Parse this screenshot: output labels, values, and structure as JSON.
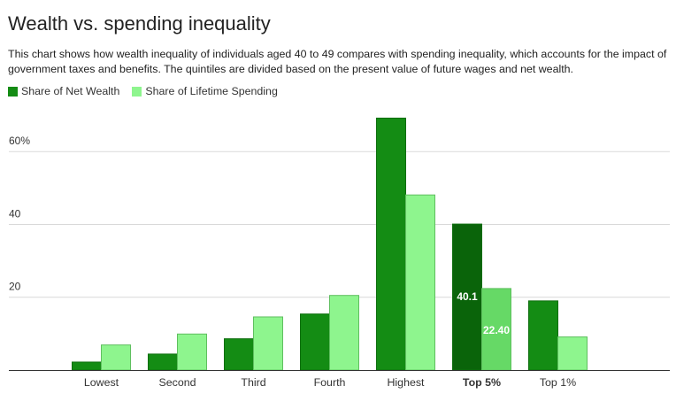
{
  "chart_data": {
    "type": "bar",
    "title": "Wealth vs. spending inequality",
    "subtitle": "This chart shows how wealth inequality of individuals aged 40 to 49 compares with spending inequality, which accounts for the impact of government taxes and benefits. The quintiles are divided based on the present value of future wages and net wealth.",
    "categories": [
      "Lowest",
      "Second",
      "Third",
      "Fourth",
      "Highest",
      "Top 5%",
      "Top 1%"
    ],
    "highlighted_category": "Top 5%",
    "series": [
      {
        "name": "Share of Net Wealth",
        "color": "#148c14",
        "highlight_color": "#0a640a",
        "values": [
          2.2,
          4.4,
          8.6,
          15.4,
          69.2,
          40.1,
          19.0
        ]
      },
      {
        "name": "Share of Lifetime Spending",
        "color": "#8ef58e",
        "highlight_color": "#66d966",
        "values": [
          6.9,
          9.9,
          14.6,
          20.5,
          48.1,
          22.4,
          9.1
        ]
      }
    ],
    "data_labels": [
      {
        "category": "Top 5%",
        "series": 0,
        "text": "40.1"
      },
      {
        "category": "Top 5%",
        "series": 1,
        "text": "22.40"
      }
    ],
    "yticks": [
      {
        "value": 20,
        "label": "20"
      },
      {
        "value": 40,
        "label": "40"
      },
      {
        "value": 60,
        "label": "60%"
      }
    ],
    "ylim": [
      0,
      71
    ],
    "grid": true,
    "legend_position": "top-left",
    "xlabel": "",
    "ylabel": ""
  }
}
